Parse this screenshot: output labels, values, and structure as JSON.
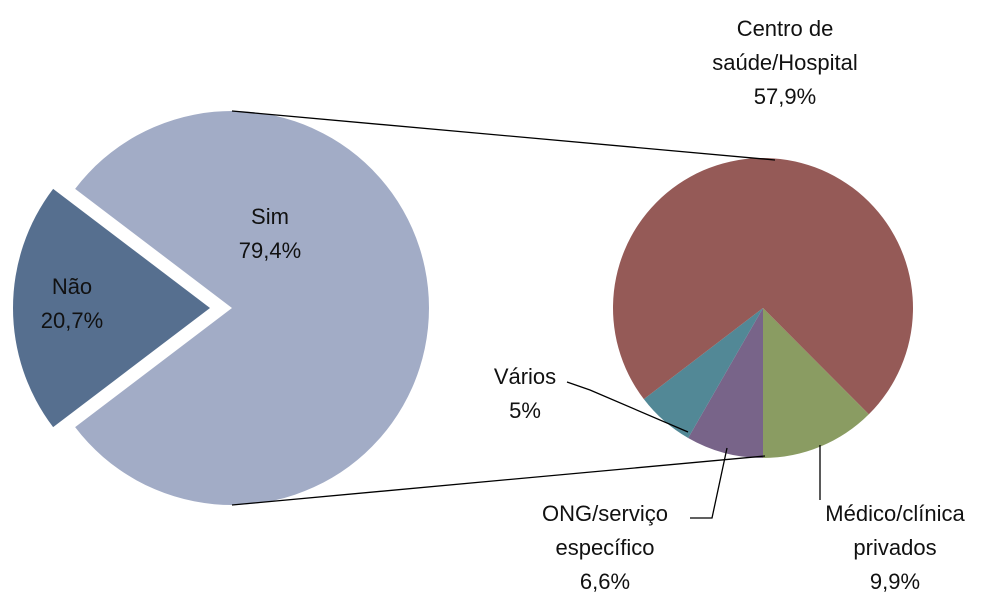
{
  "chart_data": {
    "type": "pie-of-pie",
    "categories": [
      "Sim",
      "Não"
    ],
    "values": [
      79.4,
      20.7
    ],
    "value_labels": [
      "79,4%",
      "20,7%"
    ],
    "colors": [
      "#a2acc6",
      "#566f8f"
    ],
    "secondary": {
      "categories": [
        "Médico/clínica privados",
        "ONG/serviço específico",
        "Vários",
        "Centro de saúde/Hospital"
      ],
      "values": [
        9.9,
        6.6,
        5,
        57.9
      ],
      "value_labels": [
        "9,9%",
        "6,6%",
        "5%",
        "57,9%"
      ],
      "colors": [
        "#8a9c62",
        "#786489",
        "#528896",
        "#955a57"
      ]
    }
  }
}
